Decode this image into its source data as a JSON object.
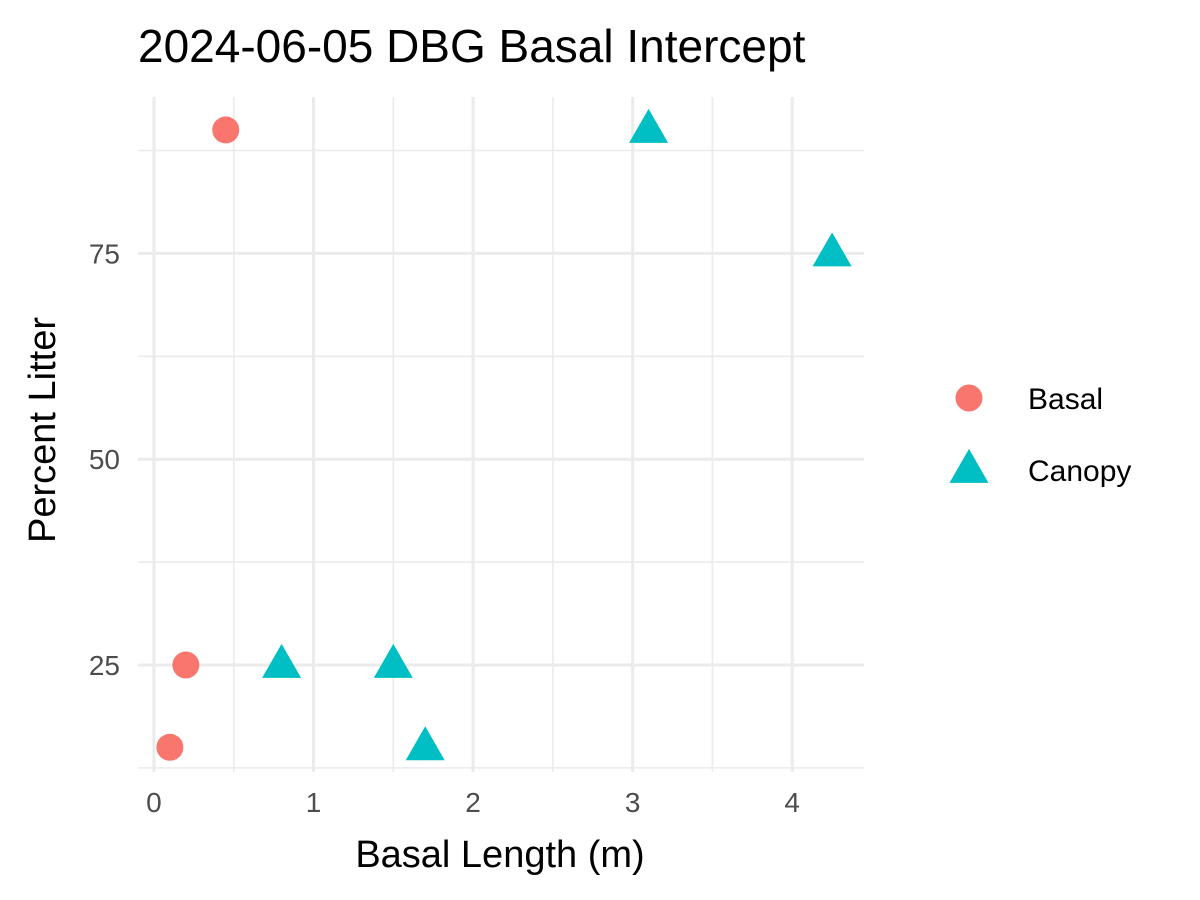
{
  "chart_data": {
    "type": "scatter",
    "title": "2024-06-05 DBG Basal Intercept",
    "xlabel": "Basal Length (m)",
    "ylabel": "Percent Litter",
    "xlim": [
      -0.1,
      4.45
    ],
    "ylim": [
      12,
      94
    ],
    "x_ticks": [
      0,
      1,
      2,
      3,
      4
    ],
    "y_ticks": [
      25,
      50,
      75
    ],
    "grid": true,
    "legend_position": "right",
    "series": [
      {
        "name": "Basal",
        "shape": "circle",
        "color": "#F8766D",
        "points": [
          {
            "x": 0.45,
            "y": 90
          },
          {
            "x": 0.2,
            "y": 25
          },
          {
            "x": 0.1,
            "y": 15
          }
        ]
      },
      {
        "name": "Canopy",
        "shape": "triangle",
        "color": "#00BFC4",
        "points": [
          {
            "x": 3.1,
            "y": 90
          },
          {
            "x": 4.25,
            "y": 75
          },
          {
            "x": 0.8,
            "y": 25
          },
          {
            "x": 1.5,
            "y": 25
          },
          {
            "x": 1.7,
            "y": 15
          }
        ]
      }
    ]
  }
}
